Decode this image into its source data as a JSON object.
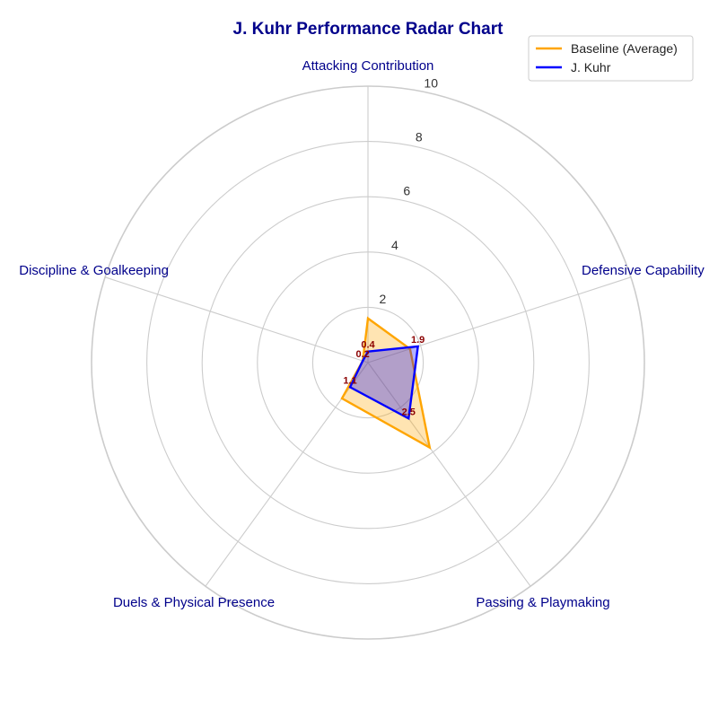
{
  "chart_data": {
    "type": "radar",
    "title": "J. Kuhr Performance Radar Chart",
    "categories": [
      "Attacking Contribution",
      "Defensive Capability",
      "Passing & Playmaking",
      "Duels & Physical Presence",
      "Discipline & Goalkeeping"
    ],
    "rlim": [
      0,
      10
    ],
    "rticks": [
      2,
      4,
      6,
      8,
      10
    ],
    "rtick_labels": [
      "2",
      "4",
      "6",
      "8",
      "10"
    ],
    "grid": true,
    "legend": "top-right",
    "series": [
      {
        "name": "Baseline (Average)",
        "values": [
          1.6,
          1.6,
          3.8,
          1.6,
          0.2
        ],
        "color": "#FFA500",
        "fill_opacity": 0.3,
        "show_labels": false
      },
      {
        "name": "J. Kuhr",
        "values": [
          0.4,
          1.9,
          2.5,
          1.1,
          0.2
        ],
        "value_labels": [
          "0.4",
          "1.9",
          "2.5",
          "1.1",
          "0.2"
        ],
        "color": "#0000FF",
        "fill_opacity": 0.3,
        "show_labels": true
      }
    ],
    "colors": {
      "title": "#00008B",
      "axis_label": "#00008B",
      "data_label": "#8B0000",
      "grid": "#cccccc"
    }
  }
}
